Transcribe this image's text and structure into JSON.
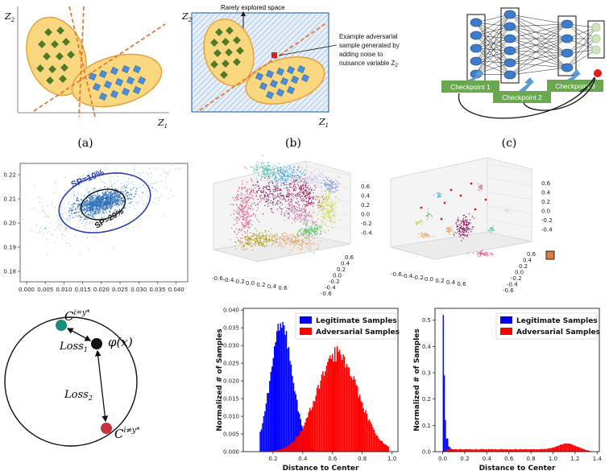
{
  "panel_labels": {
    "a": "(a)",
    "b": "(b)",
    "c": "(c)"
  },
  "panel_a": {
    "y_axis": "Z",
    "y_sub": "2",
    "x_axis": "Z",
    "x_sub": "1"
  },
  "panel_b": {
    "y_axis": "Z",
    "y_sub": "2",
    "x_axis": "Z",
    "x_sub": "1",
    "top_note": "Rarely explored space",
    "annotation_lines": [
      "Example adversarial",
      "sample generated by",
      "adding noise to",
      "nuisance variable Z"
    ],
    "annotation_sub": "2"
  },
  "panel_c": {
    "checkpoints": [
      "Checkpoint 1",
      "Checkpoint 2",
      "Checkpoint 3"
    ]
  },
  "scatter_panel": {
    "label_outer": "SP=10%",
    "label_inner": "SP=20%",
    "x_ticks": [
      "0.000",
      "0.005",
      "0.010",
      "0.015",
      "0.020",
      "0.025",
      "0.030",
      "0.035",
      "0.040"
    ],
    "y_ticks": [
      "0.22",
      "0.21",
      "0.20",
      "0.19",
      "0.18"
    ]
  },
  "cluster3d_left": {
    "z_ticks": [
      "0.6",
      "0.4",
      "0.2",
      "0.0",
      "-0.2",
      "-0.4"
    ],
    "x_ticks": [
      "-0.6",
      "-0.4",
      "-0.2",
      "0.0",
      "0.2",
      "0.4",
      "0.6"
    ],
    "y_ticks": [
      "0.6",
      "0.4",
      "0.2",
      "0.0",
      "-0.2",
      "-0.4",
      "-0.6"
    ]
  },
  "cluster3d_right": {
    "z_ticks": [
      "0.6",
      "0.4",
      "0.2",
      "0.0",
      "-0.2",
      "-0.4"
    ],
    "x_ticks": [
      "-0.6",
      "-0.4",
      "-0.2",
      "0.0",
      "0.2",
      "0.4",
      "0.6"
    ],
    "y_ticks": [
      "0.6",
      "0.4",
      "0.2",
      "0.0",
      "-0.2",
      "-0.4",
      "-0.6"
    ]
  },
  "circle_panel": {
    "c_top": "C",
    "c_top_sup": "i=y*",
    "phi": "φ(x)",
    "loss1": "Loss",
    "loss1_sub": "1",
    "loss2": "Loss",
    "loss2_sub": "2",
    "c_bottom": "C",
    "c_bottom_sup": "i≠y*"
  },
  "hist_left": {
    "legend": [
      "Legitimate Samples",
      "Adversarial Samples"
    ],
    "ylabel": "Normalized # of Samples",
    "xlabel": "Distance to Center",
    "x_ticks": [
      "0.2",
      "0.4",
      "0.6",
      "0.8",
      "1.0"
    ],
    "y_ticks": [
      "0.000",
      "0.005",
      "0.010",
      "0.015",
      "0.020",
      "0.025",
      "0.030",
      "0.035",
      "0.040"
    ]
  },
  "hist_right": {
    "legend": [
      "Legitimate Samples",
      "Adversarial Samples"
    ],
    "ylabel": "Normalized # of Samples",
    "xlabel": "Distance to Center",
    "x_ticks": [
      "0.0",
      "0.2",
      "0.4",
      "0.6",
      "0.8",
      "1.0",
      "1.2",
      "1.4"
    ],
    "y_ticks": [
      "0.0",
      "0.1",
      "0.2",
      "0.3",
      "0.4",
      "0.5"
    ]
  },
  "colors": {
    "blue_hist": "#0000ff",
    "red_hist": "#ff0000",
    "green_box": "#6aa84f",
    "ellipse_fill": "#f9d77e",
    "ellipse_stroke": "#e6a13c",
    "dashed": "#e07b39",
    "node": "#3d7cc9"
  }
}
